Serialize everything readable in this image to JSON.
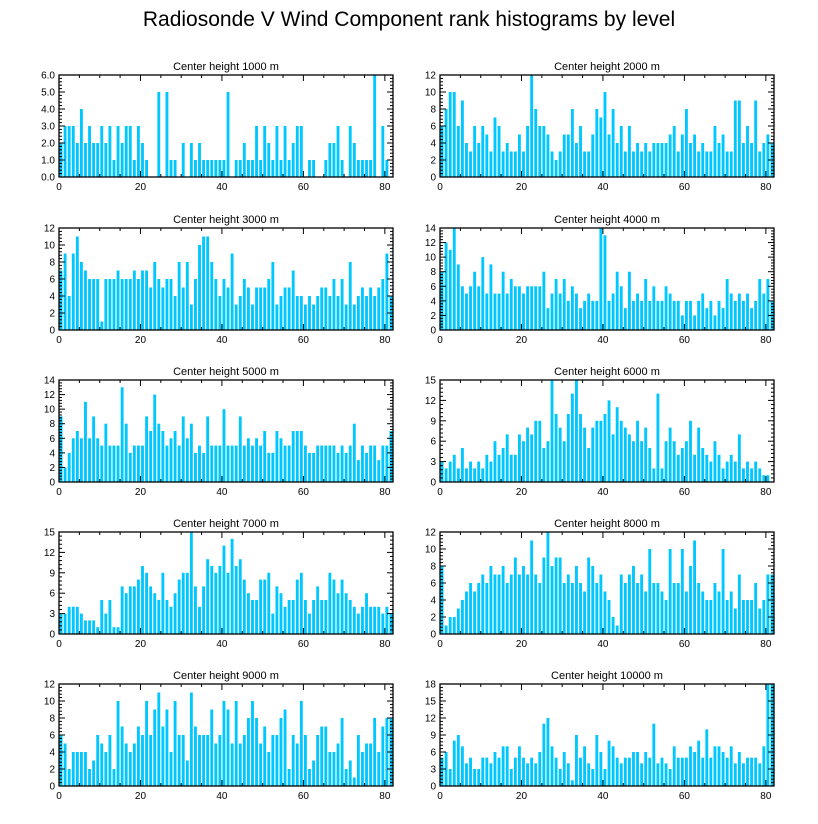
{
  "title": "Radiosonde V Wind Component rank histograms by level",
  "bar_color": "#00c8ff",
  "bar_edge_color": "#ffffff",
  "chart_data": [
    {
      "type": "bar",
      "title": "Center height 1000 m",
      "x": "rank 0-81",
      "xlim": [
        0,
        82
      ],
      "ylim": [
        0,
        6
      ],
      "yticks": [
        0,
        1,
        2,
        3,
        4,
        5,
        6
      ],
      "yformat": "1dp",
      "xticks": [
        0,
        20,
        40,
        60,
        80
      ],
      "values": [
        2,
        3,
        3,
        3,
        2,
        4,
        2,
        3,
        2,
        2,
        3,
        2,
        3,
        1,
        3,
        2,
        3,
        3,
        1,
        3,
        2,
        1,
        0,
        0,
        5,
        0,
        5,
        1,
        1,
        0,
        2,
        0,
        2,
        1,
        2,
        1,
        1,
        1,
        1,
        1,
        1,
        5,
        0,
        1,
        1,
        2,
        1,
        1,
        3,
        1,
        3,
        2,
        1,
        3,
        1,
        3,
        1,
        2,
        3,
        3,
        0,
        1,
        1,
        0,
        0,
        1,
        2,
        2,
        3,
        1,
        0,
        3,
        2,
        1,
        1,
        1,
        1,
        6,
        0,
        3,
        1,
        0
      ]
    },
    {
      "type": "bar",
      "title": "Center height 2000 m",
      "x": "rank 0-81",
      "xlim": [
        0,
        82
      ],
      "ylim": [
        0,
        12
      ],
      "yticks": [
        0,
        2,
        4,
        6,
        8,
        10,
        12
      ],
      "yformat": "int",
      "xticks": [
        0,
        20,
        40,
        60,
        80
      ],
      "values": [
        6,
        8,
        10,
        10,
        6,
        9,
        4,
        3,
        6,
        4,
        6,
        5,
        3,
        7,
        6,
        3,
        4,
        3,
        3,
        5,
        3,
        6,
        12,
        8,
        6,
        6,
        5,
        3,
        2,
        3,
        5,
        5,
        8,
        4,
        6,
        3,
        3,
        5,
        8,
        7,
        10,
        5,
        8,
        4,
        6,
        3,
        6,
        3,
        4,
        3,
        4,
        3,
        4,
        4,
        4,
        4,
        5,
        6,
        3,
        5,
        8,
        4,
        5,
        3,
        4,
        3,
        3,
        6,
        4,
        5,
        3,
        3,
        9,
        9,
        4,
        6,
        4,
        9,
        3,
        4,
        5,
        4
      ]
    },
    {
      "type": "bar",
      "title": "Center height 3000 m",
      "x": "rank 0-81",
      "xlim": [
        0,
        82
      ],
      "ylim": [
        0,
        12
      ],
      "yticks": [
        0,
        2,
        4,
        6,
        8,
        10,
        12
      ],
      "yformat": "int",
      "xticks": [
        0,
        20,
        40,
        60,
        80
      ],
      "values": [
        7,
        9,
        4,
        9,
        11,
        8,
        7,
        6,
        6,
        6,
        1,
        6,
        6,
        6,
        7,
        6,
        6,
        6,
        7,
        6,
        7,
        7,
        5,
        8,
        6,
        5,
        6,
        6,
        4,
        8,
        5,
        8,
        3,
        6,
        10,
        11,
        11,
        8,
        6,
        4,
        6,
        5,
        9,
        3,
        4,
        6,
        5,
        3,
        5,
        5,
        5,
        6,
        8,
        3,
        4,
        5,
        5,
        7,
        4,
        4,
        3,
        4,
        3,
        4,
        5,
        5,
        4,
        6,
        4,
        6,
        3,
        8,
        3,
        4,
        5,
        4,
        5,
        4,
        5,
        6,
        9,
        4
      ]
    },
    {
      "type": "bar",
      "title": "Center height 4000 m",
      "x": "rank 0-81",
      "xlim": [
        0,
        82
      ],
      "ylim": [
        0,
        14
      ],
      "yticks": [
        0,
        2,
        4,
        6,
        8,
        10,
        12,
        14
      ],
      "yformat": "int",
      "xticks": [
        0,
        20,
        40,
        60,
        80
      ],
      "values": [
        8,
        12,
        11,
        14,
        9,
        6,
        5,
        6,
        8,
        6,
        10,
        5,
        9,
        5,
        5,
        8,
        5,
        7,
        6,
        6,
        5,
        6,
        6,
        6,
        6,
        8,
        3,
        5,
        7,
        5,
        7,
        4,
        6,
        5,
        3,
        4,
        5,
        4,
        4,
        14,
        13,
        4,
        5,
        8,
        6,
        3,
        8,
        4,
        5,
        4,
        7,
        4,
        6,
        4,
        4,
        6,
        5,
        4,
        4,
        2,
        4,
        4,
        2,
        4,
        5,
        3,
        4,
        2,
        4,
        3,
        7,
        5,
        4,
        5,
        4,
        5,
        3,
        4,
        7,
        5,
        7,
        4
      ]
    },
    {
      "type": "bar",
      "title": "Center height 5000 m",
      "x": "rank 0-81",
      "xlim": [
        0,
        82
      ],
      "ylim": [
        0,
        14
      ],
      "yticks": [
        0,
        2,
        4,
        6,
        8,
        10,
        12,
        14
      ],
      "yformat": "int",
      "xticks": [
        0,
        20,
        40,
        60,
        80
      ],
      "values": [
        9,
        2,
        4,
        6,
        7,
        6,
        11,
        6,
        9,
        6,
        5,
        8,
        5,
        5,
        5,
        13,
        8,
        4,
        5,
        5,
        5,
        9,
        7,
        12,
        8,
        7,
        5,
        6,
        7,
        5,
        9,
        6,
        8,
        4,
        5,
        4,
        9,
        5,
        5,
        5,
        10,
        5,
        5,
        5,
        9,
        5,
        6,
        5,
        6,
        5,
        7,
        4,
        4,
        7,
        6,
        5,
        5,
        7,
        7,
        7,
        5,
        4,
        4,
        5,
        5,
        5,
        5,
        5,
        4,
        5,
        4,
        5,
        8,
        3,
        5,
        4,
        5,
        5,
        3,
        5,
        5,
        7
      ]
    },
    {
      "type": "bar",
      "title": "Center height 6000 m",
      "x": "rank 0-81",
      "xlim": [
        0,
        82
      ],
      "ylim": [
        0,
        15
      ],
      "yticks": [
        0,
        3,
        6,
        9,
        12,
        15
      ],
      "yformat": "int",
      "xticks": [
        0,
        20,
        40,
        60,
        80
      ],
      "values": [
        3,
        2,
        3,
        4,
        2,
        5,
        2,
        3,
        2,
        3,
        2,
        4,
        3,
        6,
        4,
        5,
        7,
        4,
        4,
        7,
        6,
        8,
        7,
        9,
        9,
        5,
        6,
        15,
        10,
        8,
        6,
        10,
        13,
        15,
        10,
        8,
        5,
        8,
        9,
        9,
        10,
        12,
        7,
        11,
        9,
        8,
        7,
        6,
        9,
        6,
        8,
        5,
        2,
        13,
        2,
        6,
        8,
        6,
        4,
        5,
        6,
        9,
        4,
        8,
        5,
        4,
        3,
        6,
        4,
        2,
        3,
        4,
        3,
        7,
        2,
        3,
        2,
        3,
        2,
        1,
        1,
        0
      ]
    },
    {
      "type": "bar",
      "title": "Center height 7000 m",
      "x": "rank 0-81",
      "xlim": [
        0,
        82
      ],
      "ylim": [
        0,
        15
      ],
      "yticks": [
        0,
        3,
        6,
        9,
        12,
        15
      ],
      "yformat": "int",
      "xticks": [
        0,
        20,
        40,
        60,
        80
      ],
      "values": [
        3,
        3,
        4,
        4,
        4,
        3,
        2,
        2,
        2,
        1,
        5,
        3,
        5,
        1,
        1,
        7,
        6,
        7,
        7,
        8,
        10,
        9,
        7,
        6,
        5,
        9,
        5,
        4,
        6,
        8,
        9,
        9,
        15,
        7,
        4,
        7,
        11,
        10,
        9,
        10,
        13,
        9,
        14,
        10,
        11,
        8,
        6,
        5,
        5,
        8,
        8,
        9,
        3,
        7,
        6,
        4,
        5,
        5,
        8,
        9,
        5,
        3,
        5,
        7,
        5,
        5,
        9,
        8,
        6,
        8,
        6,
        5,
        4,
        3,
        4,
        6,
        4,
        4,
        4,
        3,
        4,
        3
      ]
    },
    {
      "type": "bar",
      "title": "Center height 8000 m",
      "x": "rank 0-81",
      "xlim": [
        0,
        82
      ],
      "ylim": [
        0,
        12
      ],
      "yticks": [
        0,
        2,
        4,
        6,
        8,
        10,
        12
      ],
      "yformat": "int",
      "xticks": [
        0,
        20,
        40,
        60,
        80
      ],
      "values": [
        8,
        1,
        2,
        2,
        3,
        4,
        5,
        6,
        5,
        6,
        7,
        6,
        8,
        7,
        7,
        8,
        6,
        7,
        9,
        7,
        8,
        7,
        11,
        7,
        6,
        9,
        12,
        8,
        9,
        9,
        6,
        7,
        6,
        8,
        6,
        5,
        9,
        8,
        6,
        7,
        5,
        4,
        2,
        1,
        7,
        6,
        7,
        8,
        6,
        7,
        5,
        10,
        6,
        6,
        5,
        4,
        10,
        6,
        6,
        10,
        5,
        8,
        11,
        6,
        5,
        4,
        4,
        6,
        5,
        10,
        4,
        5,
        3,
        7,
        4,
        4,
        4,
        6,
        3,
        4,
        7,
        7
      ]
    },
    {
      "type": "bar",
      "title": "Center height 9000 m",
      "x": "rank 0-81",
      "xlim": [
        0,
        82
      ],
      "ylim": [
        0,
        12
      ],
      "yticks": [
        0,
        2,
        4,
        6,
        8,
        10,
        12
      ],
      "yformat": "int",
      "xticks": [
        0,
        20,
        40,
        60,
        80
      ],
      "values": [
        6,
        5,
        2,
        4,
        4,
        4,
        4,
        2,
        3,
        6,
        5,
        4,
        6,
        2,
        10,
        7,
        5,
        4,
        5,
        7,
        6,
        10,
        6,
        9,
        11,
        7,
        9,
        4,
        10,
        6,
        6,
        3,
        11,
        7,
        6,
        6,
        6,
        9,
        5,
        6,
        10,
        9,
        5,
        10,
        5,
        6,
        8,
        10,
        8,
        5,
        7,
        4,
        6,
        6,
        8,
        9,
        2,
        6,
        5,
        10,
        6,
        2,
        3,
        6,
        7,
        7,
        4,
        4,
        5,
        8,
        2,
        3,
        1,
        6,
        4,
        5,
        5,
        8,
        4,
        7,
        8,
        8
      ]
    },
    {
      "type": "bar",
      "title": "Center height 10000 m",
      "x": "rank 0-81",
      "xlim": [
        0,
        82
      ],
      "ylim": [
        0,
        18
      ],
      "yticks": [
        0,
        3,
        6,
        9,
        12,
        15,
        18
      ],
      "yformat": "int",
      "xticks": [
        0,
        20,
        40,
        60,
        80
      ],
      "values": [
        5,
        6,
        3,
        8,
        9,
        7,
        4,
        5,
        3,
        3,
        5,
        5,
        4,
        6,
        5,
        7,
        7,
        3,
        5,
        7,
        5,
        4,
        5,
        4,
        6,
        11,
        12,
        7,
        5,
        3,
        6,
        4,
        1,
        9,
        5,
        7,
        4,
        3,
        9,
        6,
        3,
        8,
        7,
        5,
        4,
        5,
        5,
        6,
        6,
        4,
        6,
        5,
        11,
        4,
        5,
        4,
        3,
        7,
        5,
        5,
        5,
        7,
        6,
        8,
        5,
        10,
        5,
        7,
        7,
        6,
        5,
        7,
        4,
        6,
        4,
        5,
        5,
        5,
        4,
        7,
        18,
        18
      ]
    }
  ]
}
